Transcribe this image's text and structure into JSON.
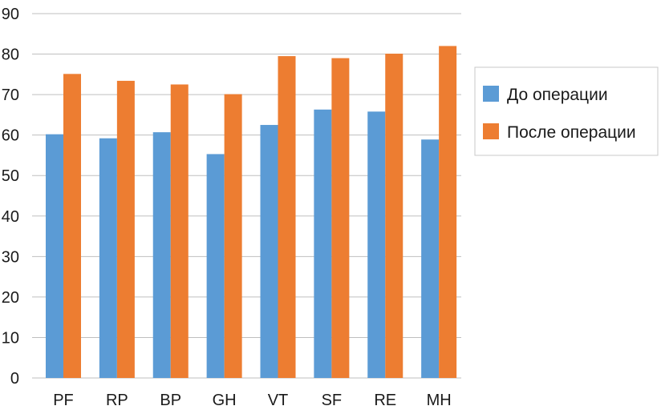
{
  "chart_data": {
    "type": "bar",
    "title": "",
    "xlabel": "",
    "ylabel": "",
    "categories": [
      "PF",
      "RP",
      "BP",
      "GH",
      "VT",
      "SF",
      "RE",
      "MH"
    ],
    "series": [
      {
        "name": "До операции",
        "color": "#5b9bd5",
        "values": [
          60.2,
          59.2,
          60.7,
          55.3,
          62.5,
          66.3,
          65.8,
          58.9
        ]
      },
      {
        "name": "После операции",
        "color": "#ed7d31",
        "values": [
          75.1,
          73.4,
          72.5,
          70.1,
          79.5,
          79.0,
          80.1,
          82.0
        ]
      }
    ],
    "ylim": [
      0,
      90
    ],
    "yticks": [
      0,
      10,
      20,
      30,
      40,
      50,
      60,
      70,
      80,
      90
    ],
    "grid": true,
    "gridline_color": "#bfbfbf",
    "legend_position": "right"
  }
}
